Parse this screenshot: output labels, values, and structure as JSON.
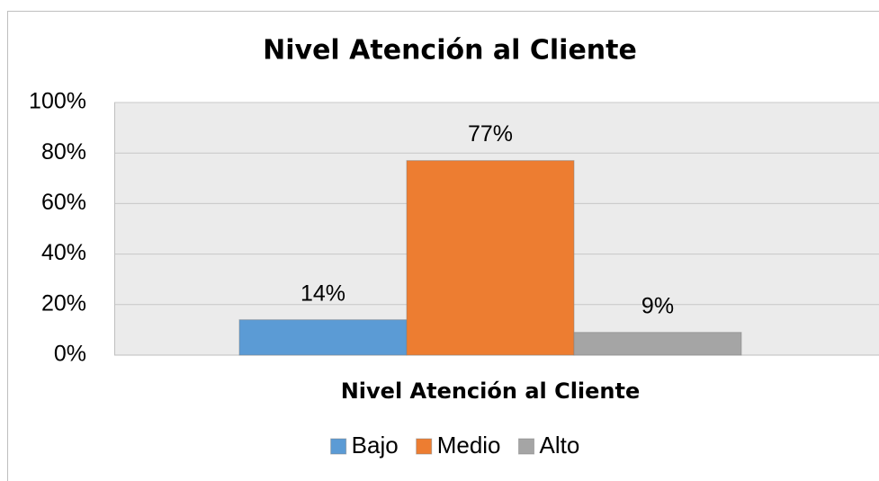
{
  "chart_data": {
    "type": "bar",
    "title": "Nivel Atención al Cliente",
    "categories": [
      "Nivel Atención al Cliente"
    ],
    "series": [
      {
        "name": "Bajo",
        "color": "#5b9bd5",
        "values": [
          14
        ],
        "value_labels": [
          "14%"
        ]
      },
      {
        "name": "Medio",
        "color": "#ed7d31",
        "values": [
          77
        ],
        "value_labels": [
          "77%"
        ]
      },
      {
        "name": "Alto",
        "color": "#a5a5a5",
        "values": [
          9
        ],
        "value_labels": [
          "9%"
        ]
      }
    ],
    "ylim": [
      0,
      100
    ],
    "yticks": [
      {
        "value": 0,
        "label": "0%"
      },
      {
        "value": 20,
        "label": "20%"
      },
      {
        "value": 40,
        "label": "40%"
      },
      {
        "value": 60,
        "label": "60%"
      },
      {
        "value": 80,
        "label": "80%"
      },
      {
        "value": 100,
        "label": "100%"
      }
    ],
    "grid": true,
    "legend": "bottom"
  }
}
